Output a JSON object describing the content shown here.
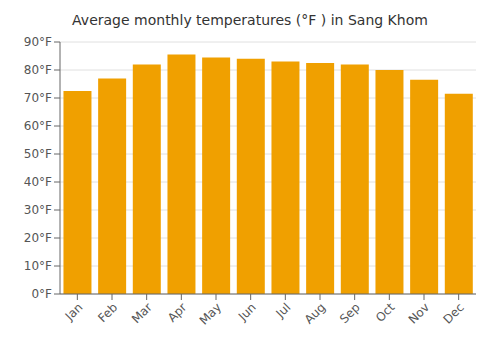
{
  "chart_data": {
    "type": "bar",
    "title": "Average monthly temperatures (°F ) in Sang Khom",
    "categories": [
      "Jan",
      "Feb",
      "Mar",
      "Apr",
      "May",
      "Jun",
      "Jul",
      "Aug",
      "Sep",
      "Oct",
      "Nov",
      "Dec"
    ],
    "values": [
      72.5,
      77.0,
      82.0,
      85.5,
      84.5,
      84.0,
      83.0,
      82.5,
      82.0,
      80.0,
      76.5,
      71.5
    ],
    "color": "#F0A000",
    "ylim": [
      0,
      90
    ],
    "yticks": [
      {
        "value": 0,
        "label": "0°F"
      },
      {
        "value": 10,
        "label": "10°F"
      },
      {
        "value": 20,
        "label": "20°F"
      },
      {
        "value": 30,
        "label": "30°F"
      },
      {
        "value": 40,
        "label": "40°F"
      },
      {
        "value": 50,
        "label": "50°F"
      },
      {
        "value": 60,
        "label": "60°F"
      },
      {
        "value": 70,
        "label": "70°F"
      },
      {
        "value": 80,
        "label": "80°F"
      },
      {
        "value": 90,
        "label": "90°F"
      }
    ],
    "grid": true
  }
}
